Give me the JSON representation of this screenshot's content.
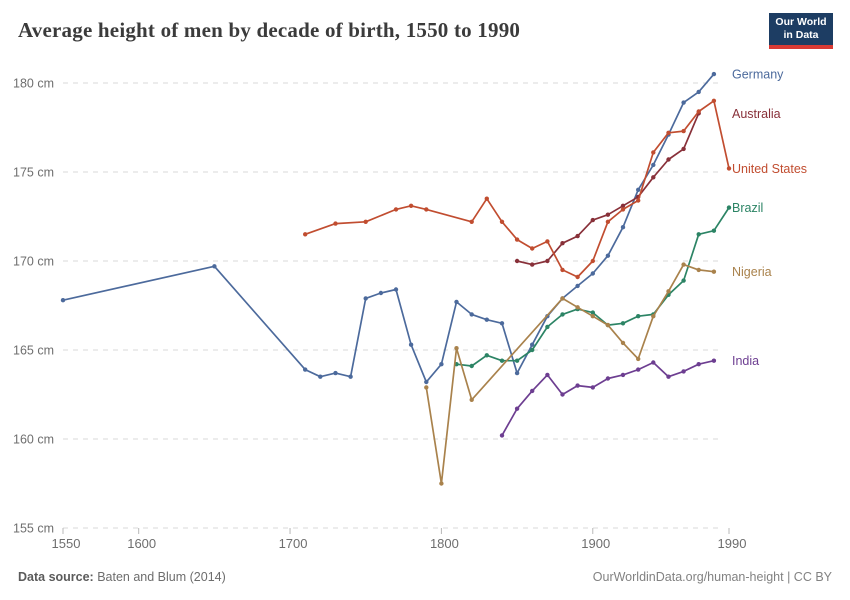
{
  "header": {
    "title": "Average height of men by decade of birth, 1550 to 1990"
  },
  "logo": {
    "line1": "Our World",
    "line2": "in Data",
    "bg_color": "#1d3d63",
    "accent_color": "#d93a34"
  },
  "footer": {
    "source_label": "Data source:",
    "source_value": " Baten and Blum (2014)",
    "link": "OurWorldinData.org/human-height | CC BY"
  },
  "chart_data": {
    "type": "line",
    "title": "Average height of men by decade of birth, 1550 to 1990",
    "xlabel": "",
    "ylabel": "",
    "unit": "cm",
    "xlim": [
      1550,
      1990
    ],
    "ylim": [
      155,
      181
    ],
    "x_ticks": [
      1550,
      1600,
      1700,
      1800,
      1900,
      1990
    ],
    "y_ticks": [
      155,
      160,
      165,
      170,
      175,
      180
    ],
    "grid": "horizontal-dashed",
    "legend_position": "right-end-labels",
    "series": [
      {
        "name": "Germany",
        "color": "#4C6A9C",
        "points": [
          [
            1550,
            167.8
          ],
          [
            1650,
            169.7
          ],
          [
            1710,
            163.9
          ],
          [
            1720,
            163.5
          ],
          [
            1730,
            163.7
          ],
          [
            1740,
            163.5
          ],
          [
            1750,
            167.9
          ],
          [
            1760,
            168.2
          ],
          [
            1770,
            168.4
          ],
          [
            1780,
            165.3
          ],
          [
            1790,
            163.2
          ],
          [
            1800,
            164.2
          ],
          [
            1810,
            167.7
          ],
          [
            1820,
            167.0
          ],
          [
            1830,
            166.7
          ],
          [
            1840,
            166.5
          ],
          [
            1850,
            163.7
          ],
          [
            1860,
            165.3
          ],
          [
            1870,
            166.9
          ],
          [
            1880,
            167.9
          ],
          [
            1890,
            168.6
          ],
          [
            1900,
            169.3
          ],
          [
            1910,
            170.3
          ],
          [
            1920,
            171.9
          ],
          [
            1930,
            174.0
          ],
          [
            1940,
            175.4
          ],
          [
            1950,
            177.1
          ],
          [
            1960,
            178.9
          ],
          [
            1970,
            179.5
          ],
          [
            1980,
            180.5
          ]
        ]
      },
      {
        "name": "Australia",
        "color": "#883039",
        "points": [
          [
            1850,
            170.0
          ],
          [
            1860,
            169.8
          ],
          [
            1870,
            170.0
          ],
          [
            1880,
            171.0
          ],
          [
            1890,
            171.4
          ],
          [
            1900,
            172.3
          ],
          [
            1910,
            172.6
          ],
          [
            1920,
            173.1
          ],
          [
            1930,
            173.6
          ],
          [
            1940,
            174.7
          ],
          [
            1950,
            175.7
          ],
          [
            1960,
            176.3
          ],
          [
            1970,
            178.3
          ]
        ]
      },
      {
        "name": "United States",
        "color": "#C14D30",
        "points": [
          [
            1710,
            171.5
          ],
          [
            1730,
            172.1
          ],
          [
            1750,
            172.2
          ],
          [
            1770,
            172.9
          ],
          [
            1780,
            173.1
          ],
          [
            1790,
            172.9
          ],
          [
            1820,
            172.2
          ],
          [
            1830,
            173.5
          ],
          [
            1840,
            172.2
          ],
          [
            1850,
            171.2
          ],
          [
            1860,
            170.7
          ],
          [
            1870,
            171.1
          ],
          [
            1880,
            169.5
          ],
          [
            1890,
            169.1
          ],
          [
            1900,
            170.0
          ],
          [
            1910,
            172.2
          ],
          [
            1920,
            172.9
          ],
          [
            1930,
            173.4
          ],
          [
            1940,
            176.1
          ],
          [
            1950,
            177.2
          ],
          [
            1960,
            177.3
          ],
          [
            1970,
            178.4
          ],
          [
            1980,
            179.0
          ],
          [
            1990,
            175.2
          ]
        ]
      },
      {
        "name": "Brazil",
        "color": "#2C8465",
        "points": [
          [
            1810,
            164.2
          ],
          [
            1820,
            164.1
          ],
          [
            1830,
            164.7
          ],
          [
            1840,
            164.4
          ],
          [
            1850,
            164.4
          ],
          [
            1860,
            165.0
          ],
          [
            1870,
            166.3
          ],
          [
            1880,
            167.0
          ],
          [
            1890,
            167.3
          ],
          [
            1900,
            167.1
          ],
          [
            1910,
            166.4
          ],
          [
            1920,
            166.5
          ],
          [
            1930,
            166.9
          ],
          [
            1940,
            167.0
          ],
          [
            1950,
            168.1
          ],
          [
            1960,
            168.9
          ],
          [
            1970,
            171.5
          ],
          [
            1980,
            171.7
          ],
          [
            1990,
            173.0
          ]
        ]
      },
      {
        "name": "Nigeria",
        "color": "#A9824C",
        "points": [
          [
            1790,
            162.9
          ],
          [
            1800,
            157.5
          ],
          [
            1810,
            165.1
          ],
          [
            1820,
            162.2
          ],
          [
            1880,
            167.9
          ],
          [
            1890,
            167.4
          ],
          [
            1900,
            166.9
          ],
          [
            1910,
            166.4
          ],
          [
            1920,
            165.4
          ],
          [
            1930,
            164.5
          ],
          [
            1940,
            166.9
          ],
          [
            1950,
            168.3
          ],
          [
            1960,
            169.8
          ],
          [
            1970,
            169.5
          ],
          [
            1980,
            169.4
          ]
        ]
      },
      {
        "name": "India",
        "color": "#6D3E91",
        "points": [
          [
            1840,
            160.2
          ],
          [
            1850,
            161.7
          ],
          [
            1860,
            162.7
          ],
          [
            1870,
            163.6
          ],
          [
            1880,
            162.5
          ],
          [
            1890,
            163.0
          ],
          [
            1900,
            162.9
          ],
          [
            1910,
            163.4
          ],
          [
            1920,
            163.6
          ],
          [
            1930,
            163.9
          ],
          [
            1940,
            164.3
          ],
          [
            1950,
            163.5
          ],
          [
            1960,
            163.8
          ],
          [
            1970,
            164.2
          ],
          [
            1980,
            164.4
          ]
        ]
      }
    ]
  }
}
